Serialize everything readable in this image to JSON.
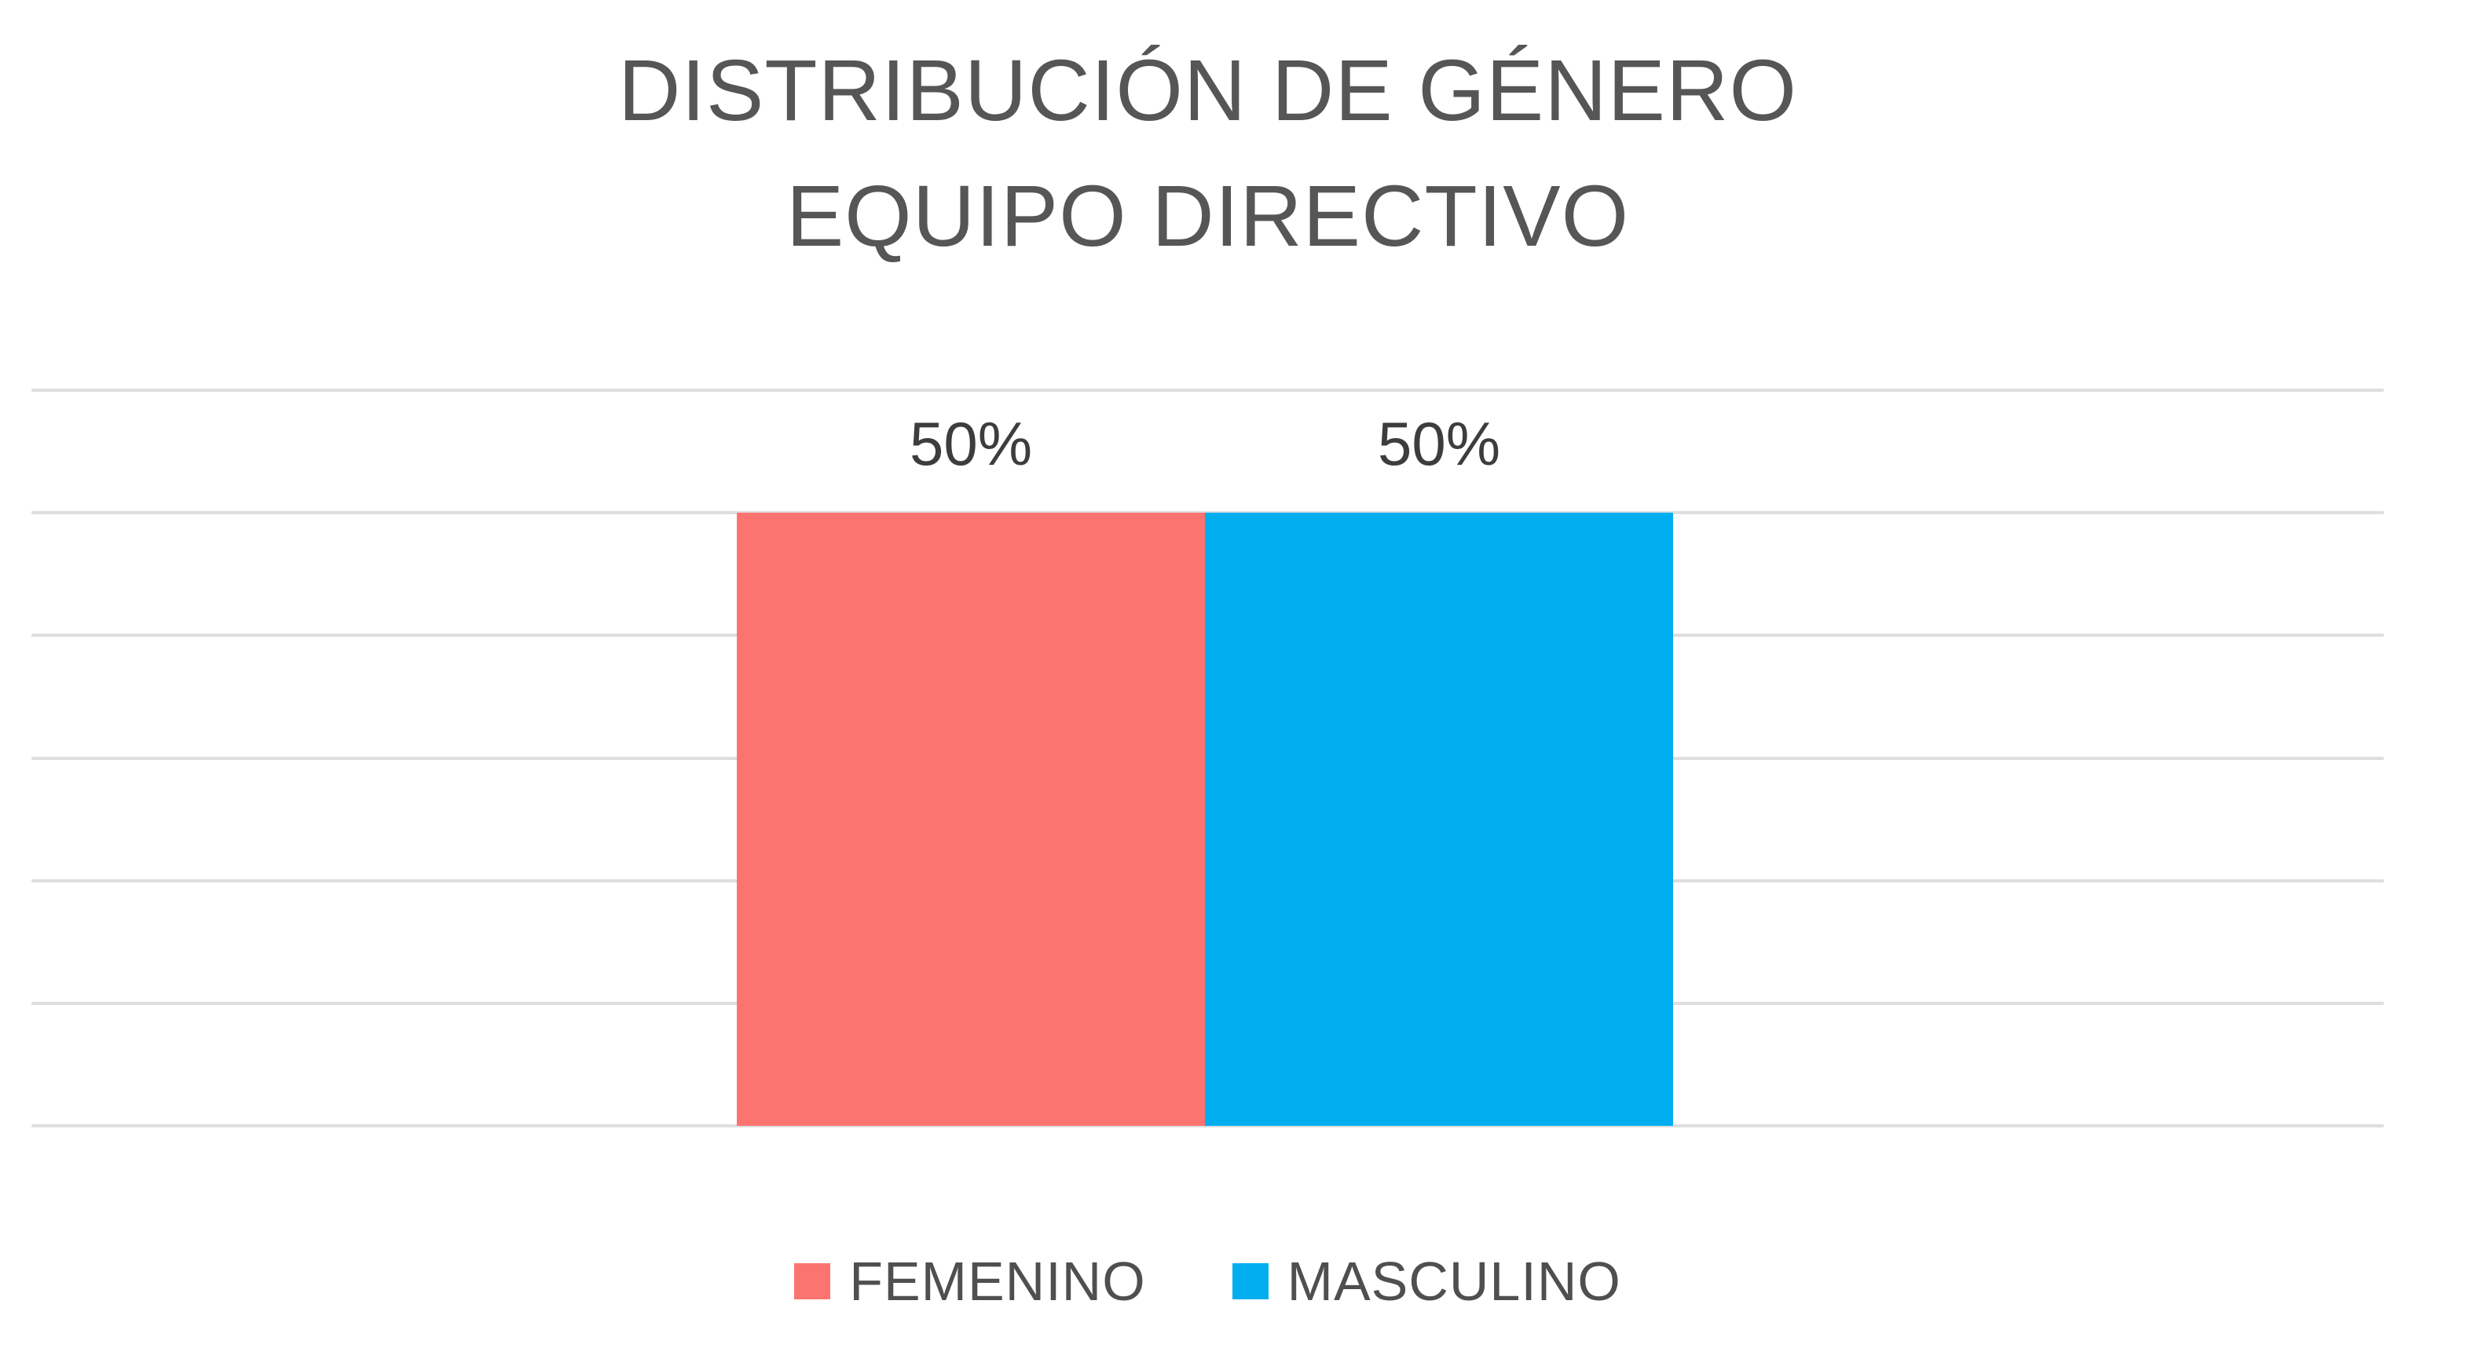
{
  "title": {
    "line1": "DISTRIBUCIÓN DE GÉNERO",
    "line2": "EQUIPO DIRECTIVO"
  },
  "chart_data": {
    "type": "bar",
    "title": "DISTRIBUCIÓN DE GÉNERO EQUIPO DIRECTIVO",
    "categories": [
      "EQUIPO DIRECTIVO"
    ],
    "series": [
      {
        "name": "FEMENINO",
        "values": [
          50
        ],
        "data_label": "50%",
        "color": "#FC7470"
      },
      {
        "name": "MASCULINO",
        "values": [
          50
        ],
        "data_label": "50%",
        "color": "#00AEF0"
      }
    ],
    "xlabel": "",
    "ylabel": "",
    "ylim": [
      0,
      60
    ],
    "gridline_interval": 10,
    "grid": true,
    "y_axis_tick_labels_visible": false,
    "x_axis_tick_labels_visible": false,
    "data_label_position": "outside-end",
    "legend_position": "bottom"
  },
  "colors": {
    "background": "#FFFFFF",
    "grid": "#DEDEDE",
    "title_text": "#565656",
    "label_text": "#3D3D3D",
    "legend_text": "#4F4F4F"
  }
}
